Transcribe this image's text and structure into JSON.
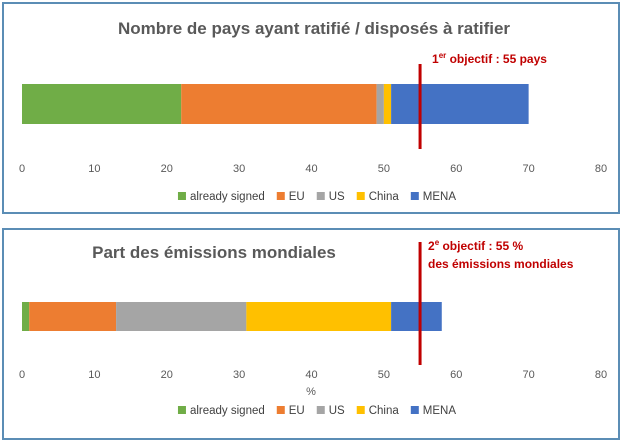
{
  "chart_data": [
    {
      "type": "bar",
      "orientation": "horizontal",
      "stacked": true,
      "title": "Nombre de pays ayant ratifié / disposés à ratifier",
      "xlim": [
        0,
        80
      ],
      "xticks": [
        "0",
        "10",
        "20",
        "30",
        "40",
        "50",
        "60",
        "70",
        "80"
      ],
      "xlabel": "",
      "series": [
        {
          "name": "already signed",
          "value": 22,
          "color": "#70ad47"
        },
        {
          "name": "EU",
          "value": 27,
          "color": "#ed7d31"
        },
        {
          "name": "US",
          "value": 1,
          "color": "#a5a5a5"
        },
        {
          "name": "China",
          "value": 1,
          "color": "#ffc000"
        },
        {
          "name": "MENA",
          "value": 19,
          "color": "#4472c4"
        }
      ],
      "threshold": {
        "value": 55,
        "color": "#c00000",
        "label_num": "1",
        "label_sup": "er",
        "label_rest": " objectif : 55 pays",
        "label_line2": ""
      },
      "legend_position": "bottom",
      "grid": false
    },
    {
      "type": "bar",
      "orientation": "horizontal",
      "stacked": true,
      "title": "Part des émissions mondiales",
      "xlim": [
        0,
        80
      ],
      "xticks": [
        "0",
        "10",
        "20",
        "30",
        "40",
        "50",
        "60",
        "70",
        "80"
      ],
      "xlabel": "%",
      "series": [
        {
          "name": "already signed",
          "value": 1,
          "color": "#70ad47"
        },
        {
          "name": "EU",
          "value": 12,
          "color": "#ed7d31"
        },
        {
          "name": "US",
          "value": 18,
          "color": "#a5a5a5"
        },
        {
          "name": "China",
          "value": 20,
          "color": "#ffc000"
        },
        {
          "name": "MENA",
          "value": 7,
          "color": "#4472c4"
        }
      ],
      "threshold": {
        "value": 55,
        "color": "#c00000",
        "label_num": "2",
        "label_sup": "e",
        "label_rest": " objectif : 55 %",
        "label_line2": "des émissions mondiales"
      },
      "legend_position": "bottom",
      "grid": false
    }
  ]
}
